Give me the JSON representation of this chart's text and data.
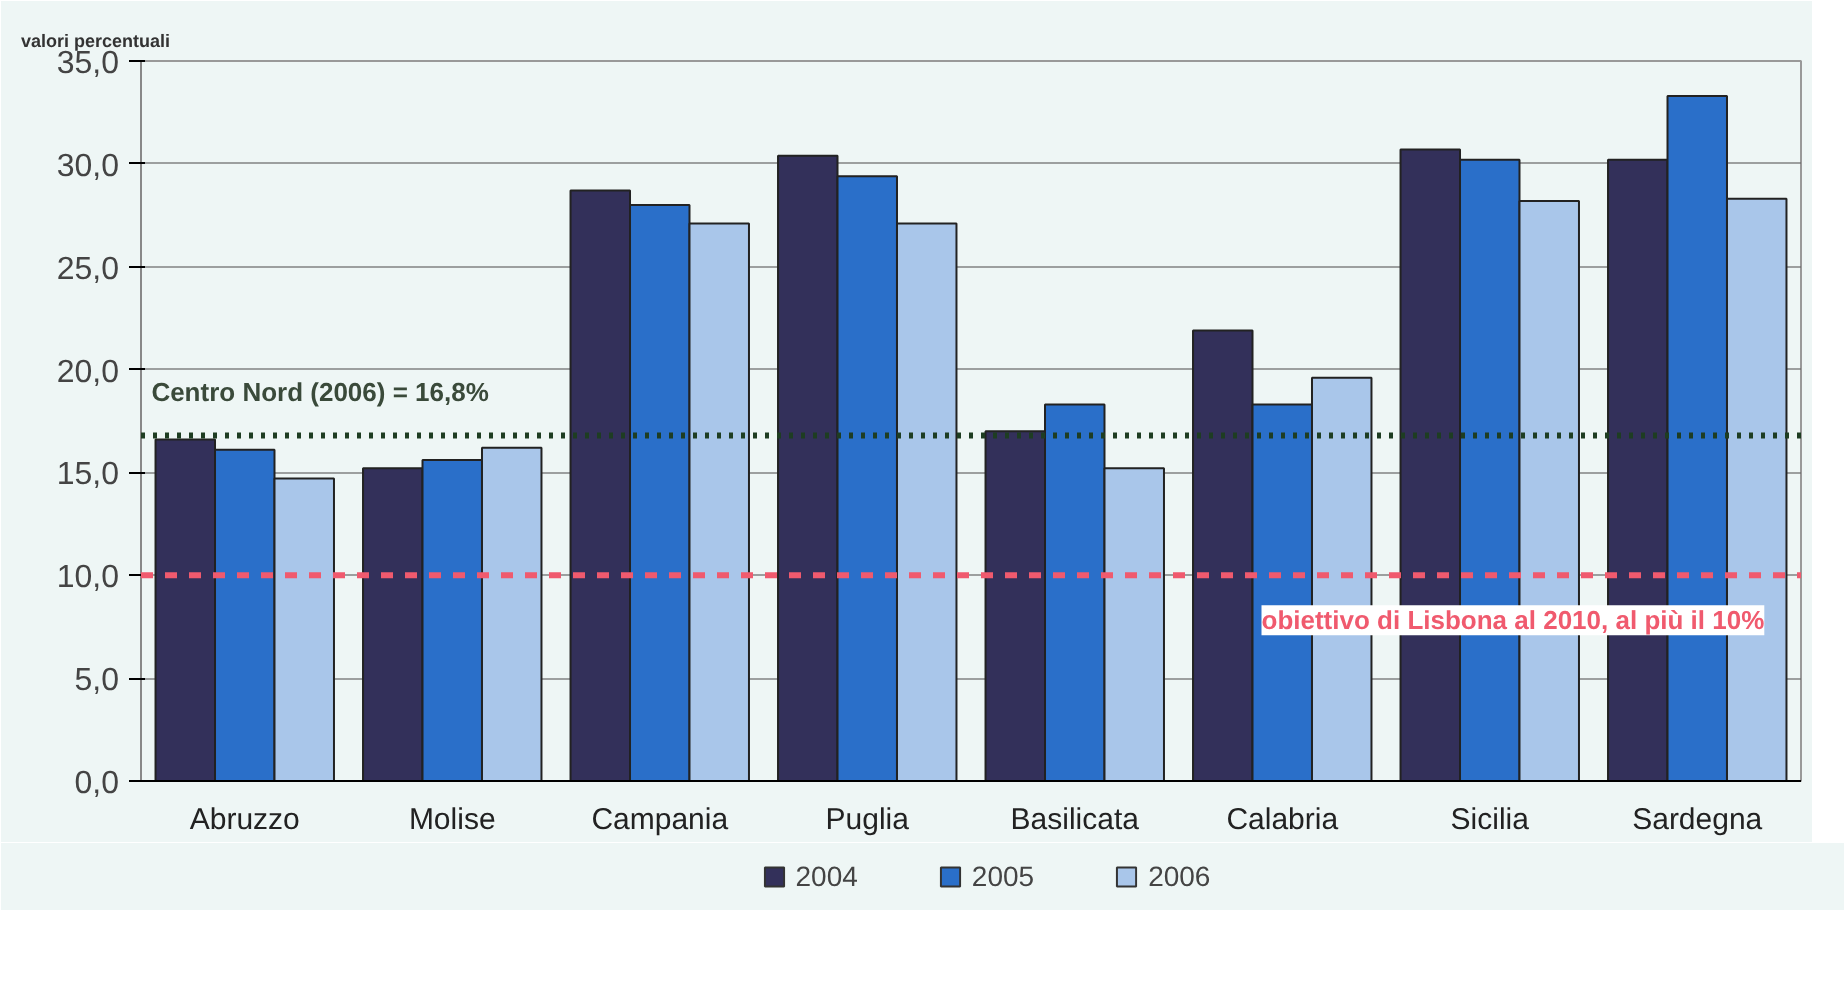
{
  "chart_data": {
    "type": "bar",
    "ylabel": "valori percentuali",
    "categories": [
      "Abruzzo",
      "Molise",
      "Campania",
      "Puglia",
      "Basilicata",
      "Calabria",
      "Sicilia",
      "Sardegna"
    ],
    "series": [
      {
        "name": "2004",
        "color": "#33305a",
        "values": [
          16.6,
          15.2,
          28.7,
          30.4,
          17.0,
          21.9,
          30.7,
          30.2
        ]
      },
      {
        "name": "2005",
        "color": "#2a6fc9",
        "values": [
          16.1,
          15.6,
          28.0,
          29.4,
          18.3,
          18.3,
          30.2,
          33.3
        ]
      },
      {
        "name": "2006",
        "color": "#a9c6ea",
        "values": [
          14.7,
          16.2,
          27.1,
          27.1,
          15.2,
          19.6,
          28.2,
          28.3
        ]
      }
    ],
    "ylim": [
      0,
      35
    ],
    "yticks": [
      {
        "value": 0,
        "label": "0,0"
      },
      {
        "value": 5,
        "label": "5,0"
      },
      {
        "value": 10,
        "label": "10,0"
      },
      {
        "value": 15,
        "label": "15,0"
      },
      {
        "value": 20,
        "label": "20,0"
      },
      {
        "value": 25,
        "label": "25,0"
      },
      {
        "value": 30,
        "label": "30,0"
      },
      {
        "value": 35,
        "label": "35,0"
      }
    ],
    "ref_lines": [
      {
        "axis": "y",
        "value": 16.8,
        "label": "Centro Nord (2006) = 16,8%",
        "color": "#1e3d22",
        "line_style": "dotted"
      },
      {
        "axis": "y",
        "value": 10,
        "label": "obiettivo di Lisbona al 2010, al più il 10%",
        "color": "#f05a6e",
        "line_style": "dashed"
      }
    ],
    "grid": "y",
    "legend": "bottom"
  }
}
